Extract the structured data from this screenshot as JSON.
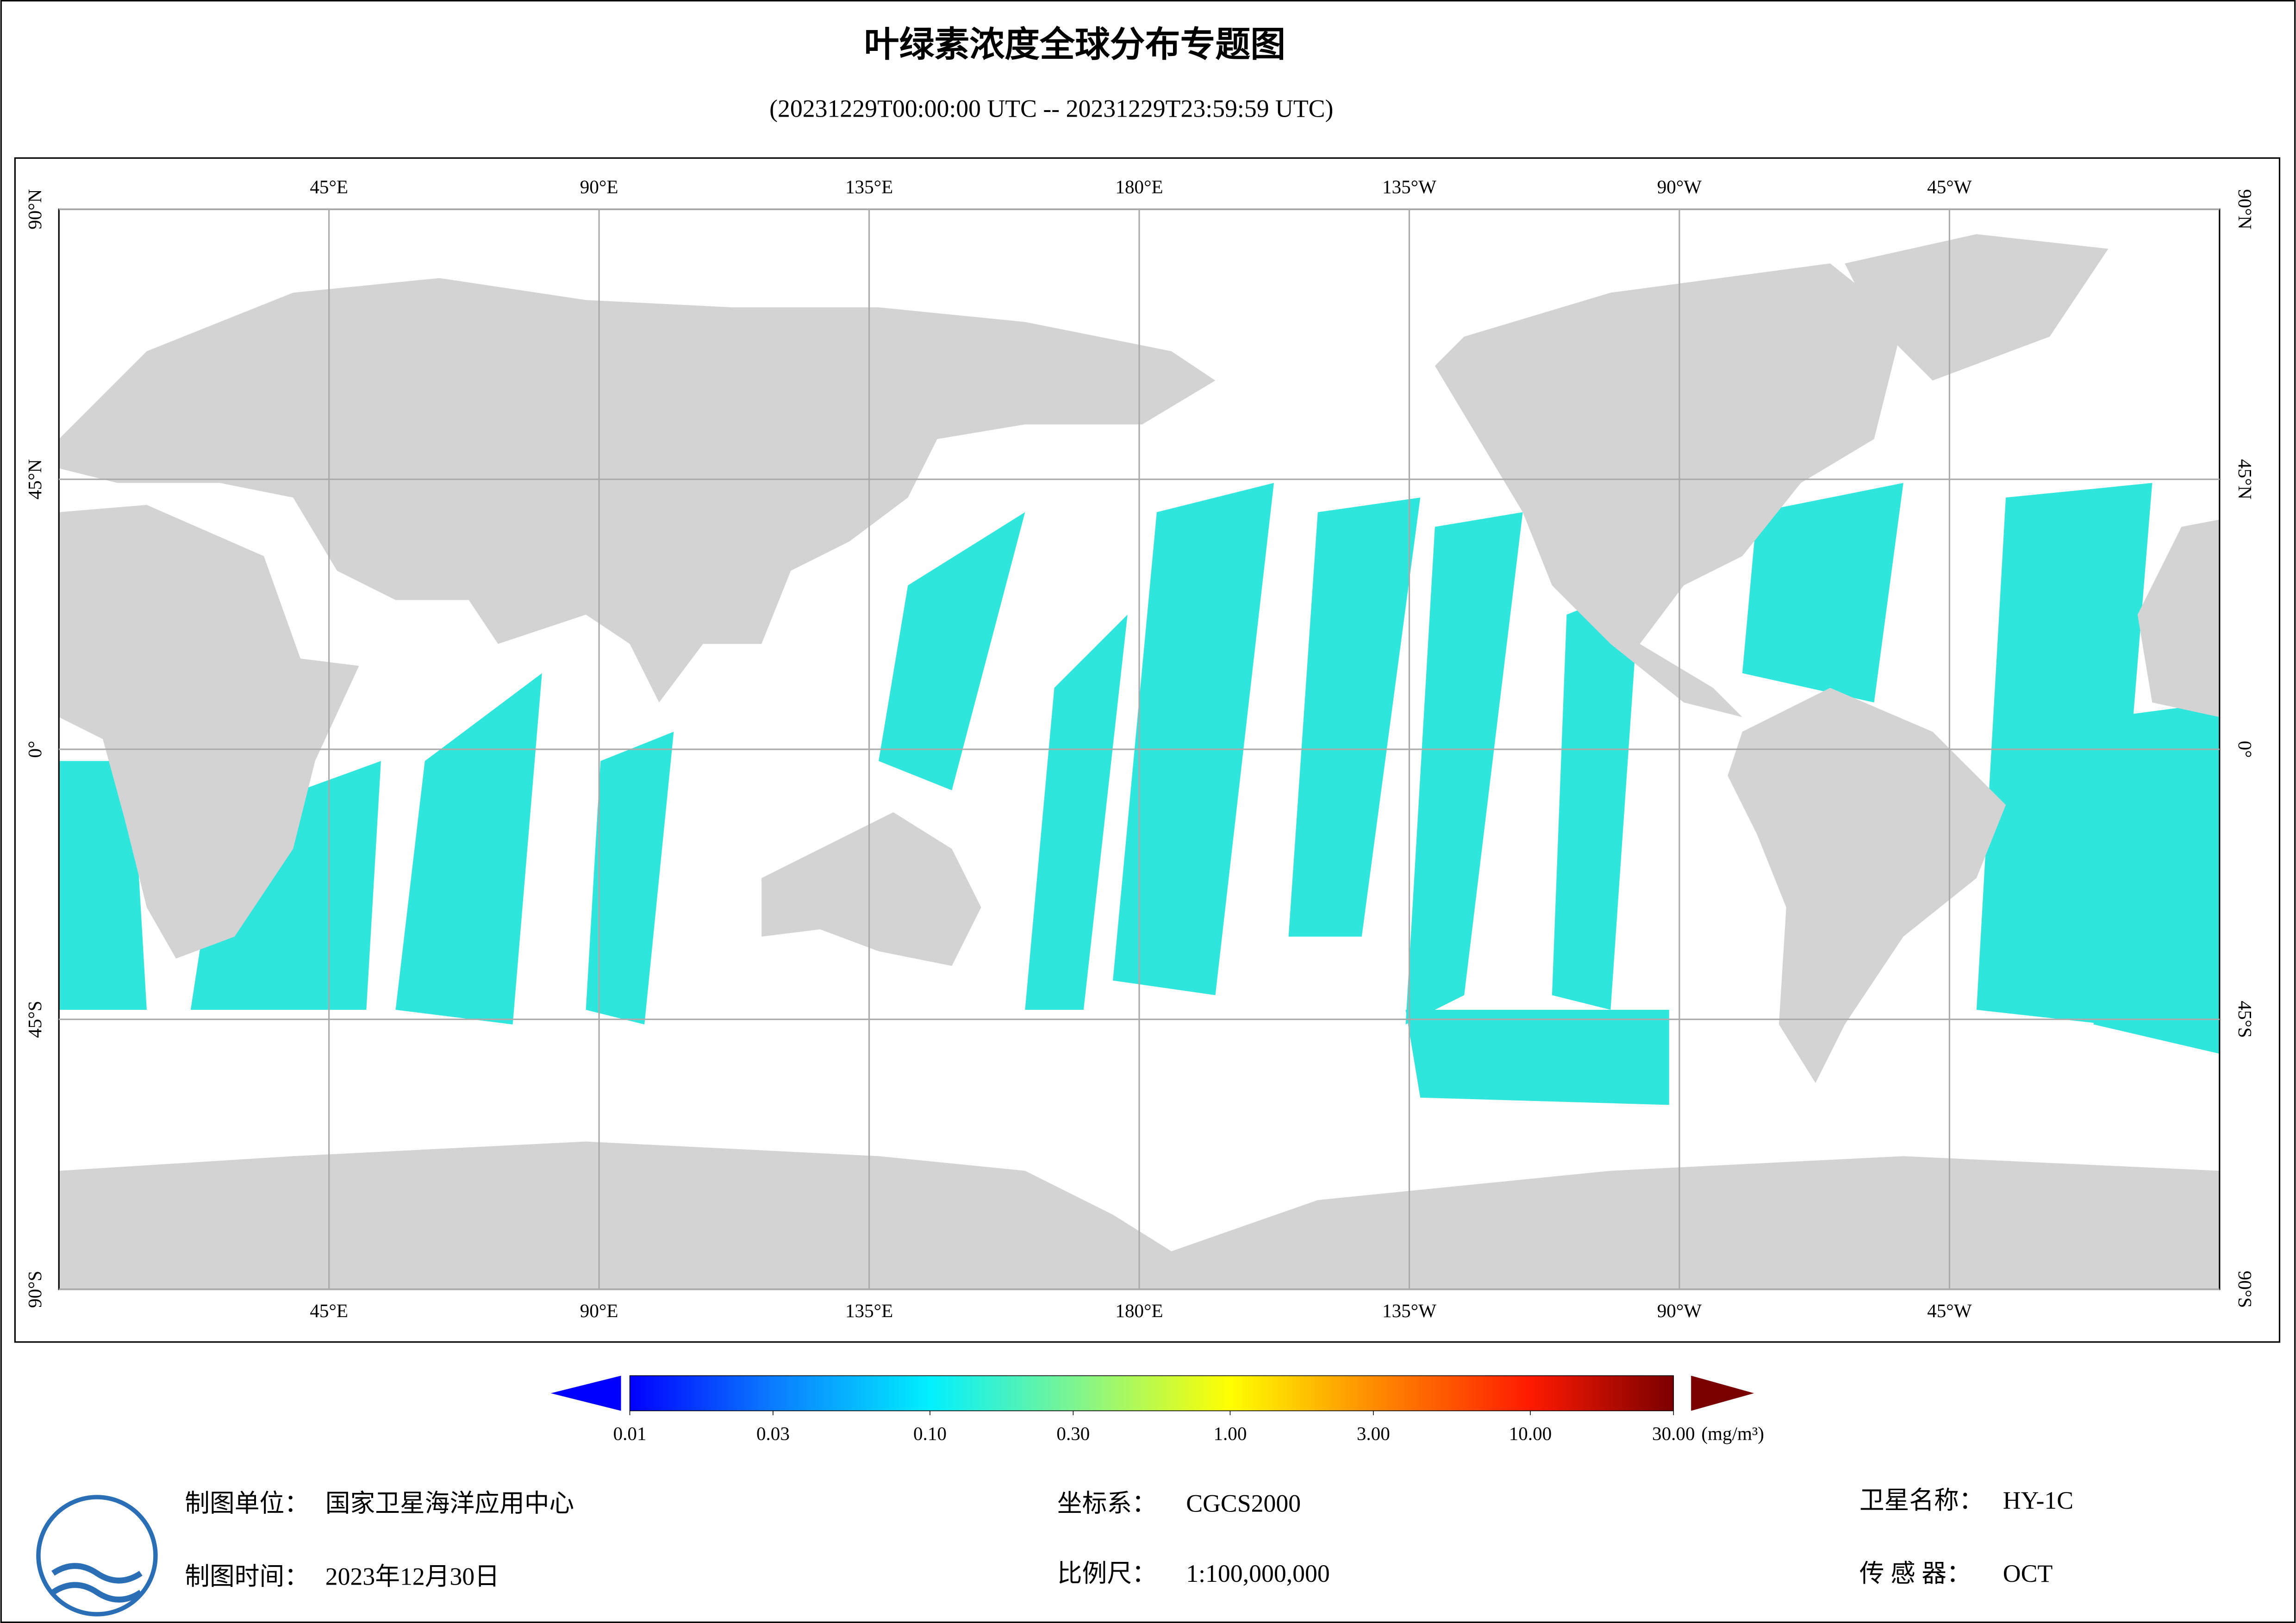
{
  "title": "叶绿素浓度全球分布专题图",
  "subtitle": "(20231229T00:00:00 UTC -- 20231229T23:59:59 UTC)",
  "map": {
    "lonlim": [
      0,
      360
    ],
    "latlim": [
      -90,
      90
    ],
    "lon_ticks": [
      {
        "value": 45,
        "label": "45°E"
      },
      {
        "value": 90,
        "label": "90°E"
      },
      {
        "value": 135,
        "label": "135°E"
      },
      {
        "value": 180,
        "label": "180°E"
      },
      {
        "value": 225,
        "label": "135°W"
      },
      {
        "value": 270,
        "label": "90°W"
      },
      {
        "value": 315,
        "label": "45°W"
      }
    ],
    "lat_ticks": [
      {
        "value": 90,
        "label": "90°N"
      },
      {
        "value": 45,
        "label": "45°N"
      },
      {
        "value": 0,
        "label": "0°"
      },
      {
        "value": -45,
        "label": "45°S"
      },
      {
        "value": -90,
        "label": "90°S"
      }
    ]
  },
  "colorbar": {
    "scale": "log",
    "lim": [
      0.01,
      30
    ],
    "ticks": [
      {
        "value": 0.01,
        "label": "0.01"
      },
      {
        "value": 0.03,
        "label": "0.03"
      },
      {
        "value": 0.1,
        "label": "0.10"
      },
      {
        "value": 0.3,
        "label": "0.30"
      },
      {
        "value": 1,
        "label": "1.00"
      },
      {
        "value": 3,
        "label": "3.00"
      },
      {
        "value": 10,
        "label": "10.00"
      },
      {
        "value": 30,
        "label": "30.00"
      }
    ],
    "colors": [
      "#0000ff",
      "#0a7cff",
      "#00f0ff",
      "#7cf590",
      "#ffff00",
      "#ff8c00",
      "#ff1a00",
      "#7a0000"
    ],
    "under_color": "#0000ff",
    "over_color": "#7a0000",
    "unit": "(mg/m³)"
  },
  "footer": {
    "unit": {
      "label": "制图单位：",
      "value": "国家卫星海洋应用中心"
    },
    "time": {
      "label": "制图时间：",
      "value": "2023年12月30日"
    },
    "crs": {
      "label": "坐标系：",
      "value": "CGCS2000"
    },
    "scale": {
      "label": "比例尺：",
      "value": "1:100,000,000"
    },
    "satellite": {
      "label": "卫星名称：",
      "value": "HY-1C"
    },
    "sensor": {
      "label": "传 感 器：",
      "value": "OCT"
    }
  }
}
